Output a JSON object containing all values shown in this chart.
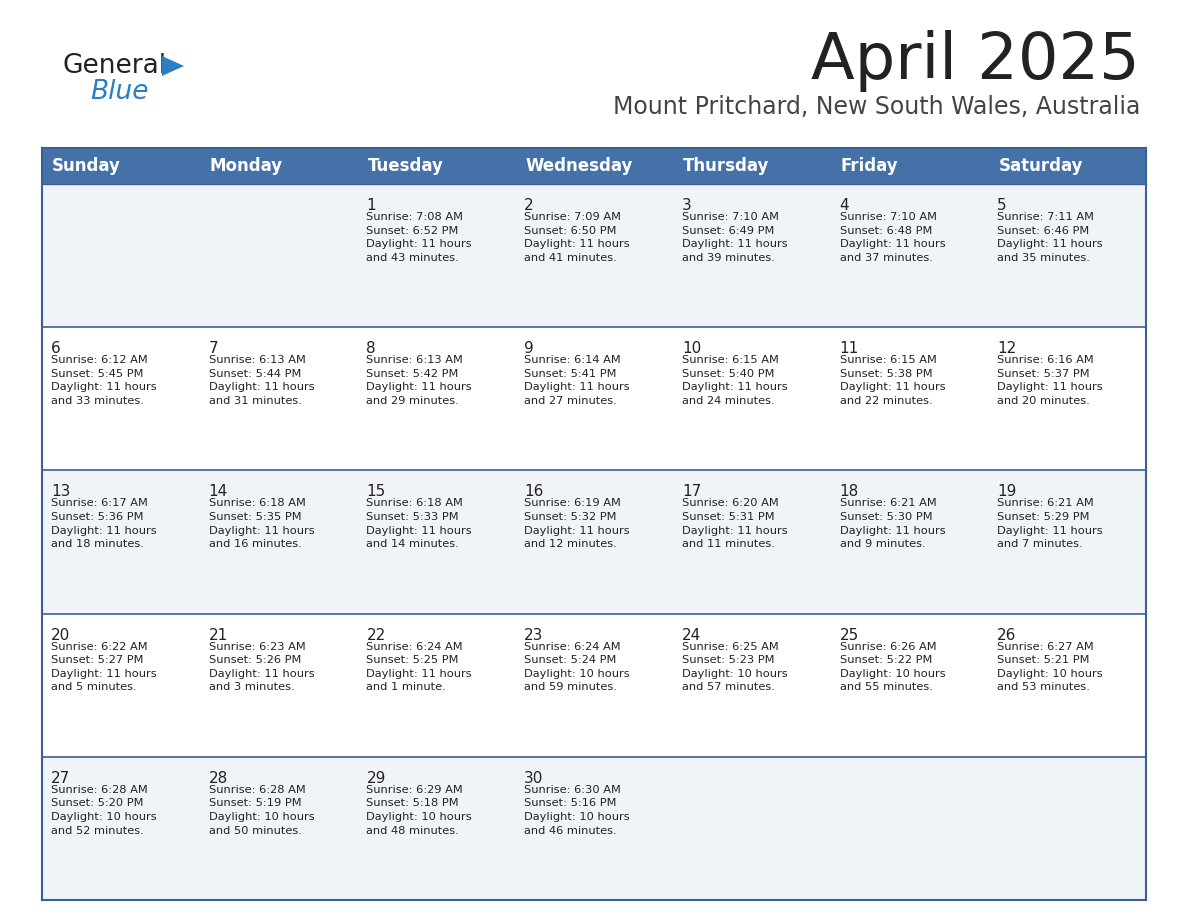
{
  "title": "April 2025",
  "subtitle": "Mount Pritchard, New South Wales, Australia",
  "days_of_week": [
    "Sunday",
    "Monday",
    "Tuesday",
    "Wednesday",
    "Thursday",
    "Friday",
    "Saturday"
  ],
  "header_bg": "#4472A8",
  "header_text": "#FFFFFF",
  "row_bg_light": "#F0F4F8",
  "row_bg_white": "#FFFFFF",
  "cell_text_color": "#222222",
  "border_color": "#3A6090",
  "title_color": "#222222",
  "subtitle_color": "#444444",
  "logo_general_color": "#222222",
  "logo_blue_color": "#2B7EC1",
  "weeks": [
    [
      {
        "day": "",
        "info": ""
      },
      {
        "day": "",
        "info": ""
      },
      {
        "day": "1",
        "info": "Sunrise: 7:08 AM\nSunset: 6:52 PM\nDaylight: 11 hours\nand 43 minutes."
      },
      {
        "day": "2",
        "info": "Sunrise: 7:09 AM\nSunset: 6:50 PM\nDaylight: 11 hours\nand 41 minutes."
      },
      {
        "day": "3",
        "info": "Sunrise: 7:10 AM\nSunset: 6:49 PM\nDaylight: 11 hours\nand 39 minutes."
      },
      {
        "day": "4",
        "info": "Sunrise: 7:10 AM\nSunset: 6:48 PM\nDaylight: 11 hours\nand 37 minutes."
      },
      {
        "day": "5",
        "info": "Sunrise: 7:11 AM\nSunset: 6:46 PM\nDaylight: 11 hours\nand 35 minutes."
      }
    ],
    [
      {
        "day": "6",
        "info": "Sunrise: 6:12 AM\nSunset: 5:45 PM\nDaylight: 11 hours\nand 33 minutes."
      },
      {
        "day": "7",
        "info": "Sunrise: 6:13 AM\nSunset: 5:44 PM\nDaylight: 11 hours\nand 31 minutes."
      },
      {
        "day": "8",
        "info": "Sunrise: 6:13 AM\nSunset: 5:42 PM\nDaylight: 11 hours\nand 29 minutes."
      },
      {
        "day": "9",
        "info": "Sunrise: 6:14 AM\nSunset: 5:41 PM\nDaylight: 11 hours\nand 27 minutes."
      },
      {
        "day": "10",
        "info": "Sunrise: 6:15 AM\nSunset: 5:40 PM\nDaylight: 11 hours\nand 24 minutes."
      },
      {
        "day": "11",
        "info": "Sunrise: 6:15 AM\nSunset: 5:38 PM\nDaylight: 11 hours\nand 22 minutes."
      },
      {
        "day": "12",
        "info": "Sunrise: 6:16 AM\nSunset: 5:37 PM\nDaylight: 11 hours\nand 20 minutes."
      }
    ],
    [
      {
        "day": "13",
        "info": "Sunrise: 6:17 AM\nSunset: 5:36 PM\nDaylight: 11 hours\nand 18 minutes."
      },
      {
        "day": "14",
        "info": "Sunrise: 6:18 AM\nSunset: 5:35 PM\nDaylight: 11 hours\nand 16 minutes."
      },
      {
        "day": "15",
        "info": "Sunrise: 6:18 AM\nSunset: 5:33 PM\nDaylight: 11 hours\nand 14 minutes."
      },
      {
        "day": "16",
        "info": "Sunrise: 6:19 AM\nSunset: 5:32 PM\nDaylight: 11 hours\nand 12 minutes."
      },
      {
        "day": "17",
        "info": "Sunrise: 6:20 AM\nSunset: 5:31 PM\nDaylight: 11 hours\nand 11 minutes."
      },
      {
        "day": "18",
        "info": "Sunrise: 6:21 AM\nSunset: 5:30 PM\nDaylight: 11 hours\nand 9 minutes."
      },
      {
        "day": "19",
        "info": "Sunrise: 6:21 AM\nSunset: 5:29 PM\nDaylight: 11 hours\nand 7 minutes."
      }
    ],
    [
      {
        "day": "20",
        "info": "Sunrise: 6:22 AM\nSunset: 5:27 PM\nDaylight: 11 hours\nand 5 minutes."
      },
      {
        "day": "21",
        "info": "Sunrise: 6:23 AM\nSunset: 5:26 PM\nDaylight: 11 hours\nand 3 minutes."
      },
      {
        "day": "22",
        "info": "Sunrise: 6:24 AM\nSunset: 5:25 PM\nDaylight: 11 hours\nand 1 minute."
      },
      {
        "day": "23",
        "info": "Sunrise: 6:24 AM\nSunset: 5:24 PM\nDaylight: 10 hours\nand 59 minutes."
      },
      {
        "day": "24",
        "info": "Sunrise: 6:25 AM\nSunset: 5:23 PM\nDaylight: 10 hours\nand 57 minutes."
      },
      {
        "day": "25",
        "info": "Sunrise: 6:26 AM\nSunset: 5:22 PM\nDaylight: 10 hours\nand 55 minutes."
      },
      {
        "day": "26",
        "info": "Sunrise: 6:27 AM\nSunset: 5:21 PM\nDaylight: 10 hours\nand 53 minutes."
      }
    ],
    [
      {
        "day": "27",
        "info": "Sunrise: 6:28 AM\nSunset: 5:20 PM\nDaylight: 10 hours\nand 52 minutes."
      },
      {
        "day": "28",
        "info": "Sunrise: 6:28 AM\nSunset: 5:19 PM\nDaylight: 10 hours\nand 50 minutes."
      },
      {
        "day": "29",
        "info": "Sunrise: 6:29 AM\nSunset: 5:18 PM\nDaylight: 10 hours\nand 48 minutes."
      },
      {
        "day": "30",
        "info": "Sunrise: 6:30 AM\nSunset: 5:16 PM\nDaylight: 10 hours\nand 46 minutes."
      },
      {
        "day": "",
        "info": ""
      },
      {
        "day": "",
        "info": ""
      },
      {
        "day": "",
        "info": ""
      }
    ]
  ]
}
